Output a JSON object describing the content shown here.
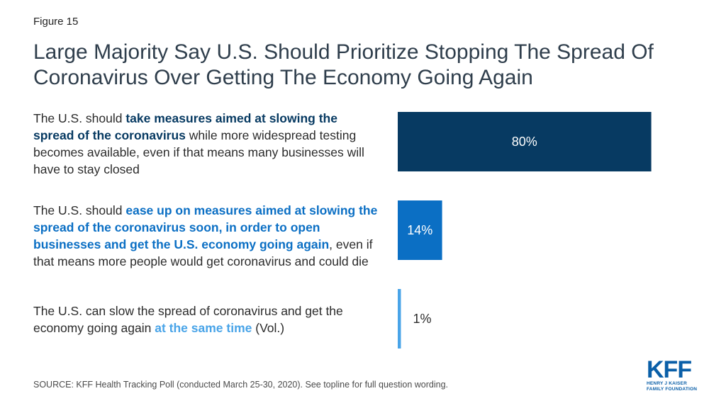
{
  "figure_label": "Figure 15",
  "title": "Large Majority Say U.S. Should Prioritize Stopping The Spread Of Coronavirus Over Getting The Economy Going Again",
  "items": [
    {
      "pre": "The U.S. should ",
      "highlight": "take measures aimed at slowing the spread of the coronavirus",
      "post": " while more widespread testing becomes available, even if that means many businesses will have to stay closed"
    },
    {
      "pre": "The U.S. should ",
      "highlight": "ease up on measures aimed at slowing the spread of the coronavirus soon, in order to open businesses and get the U.S. economy going again",
      "post": ", even if that means more people would get coronavirus and could die"
    },
    {
      "pre": "The U.S. can slow the spread of coronavirus and get the economy going again ",
      "highlight": "at the same time",
      "post": " (Vol.)"
    }
  ],
  "chart_data": {
    "type": "bar",
    "orientation": "horizontal",
    "categories": [
      "The U.S. should take measures aimed at slowing the spread of the coronavirus while more widespread testing becomes available, even if that means many businesses will have to stay closed",
      "The U.S. should ease up on measures aimed at slowing the spread of the coronavirus soon, in order to open businesses and get the U.S. economy going again, even if that means more people would get coronavirus and could die",
      "The U.S. can slow the spread of coronavirus and get the economy going again at the same time (Vol.)"
    ],
    "values": [
      80,
      14,
      1
    ],
    "value_labels": [
      "80%",
      "14%",
      "1%"
    ],
    "colors": [
      "#073a62",
      "#0b6fc4",
      "#49a4e8"
    ],
    "label_colors": [
      "#ffffff",
      "#ffffff",
      "#2b2b2b"
    ],
    "xlim": [
      0,
      100
    ],
    "grid": false,
    "legend": "none"
  },
  "source": "SOURCE: KFF Health Tracking Poll (conducted March 25-30, 2020). See topline for full question wording.",
  "logo": {
    "mark": "KFF",
    "line1": "HENRY J KAISER",
    "line2": "FAMILY FOUNDATION",
    "color": "#0a5fa8"
  }
}
